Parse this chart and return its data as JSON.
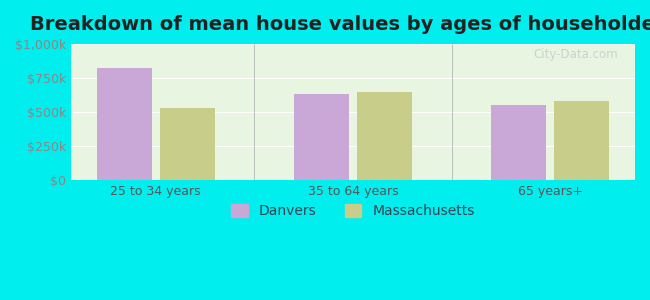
{
  "title": "Breakdown of mean house values by ages of householders",
  "categories": [
    "25 to 34 years",
    "35 to 64 years",
    "65 years+"
  ],
  "danvers_values": [
    820000,
    635000,
    555000
  ],
  "massachusetts_values": [
    530000,
    645000,
    580000
  ],
  "danvers_color": "#c9a8d8",
  "massachusetts_color": "#c8ce8a",
  "background_color": "#00EEEE",
  "plot_bg_color": "#e8f5e0",
  "ylim": [
    0,
    1000000
  ],
  "yticks": [
    0,
    250000,
    500000,
    750000,
    1000000
  ],
  "ytick_labels": [
    "$0",
    "$250k",
    "$500k",
    "$750k",
    "$1,000k"
  ],
  "legend_labels": [
    "Danvers",
    "Massachusetts"
  ],
  "watermark": "City-Data.com",
  "title_fontsize": 14,
  "tick_fontsize": 9,
  "legend_fontsize": 10
}
